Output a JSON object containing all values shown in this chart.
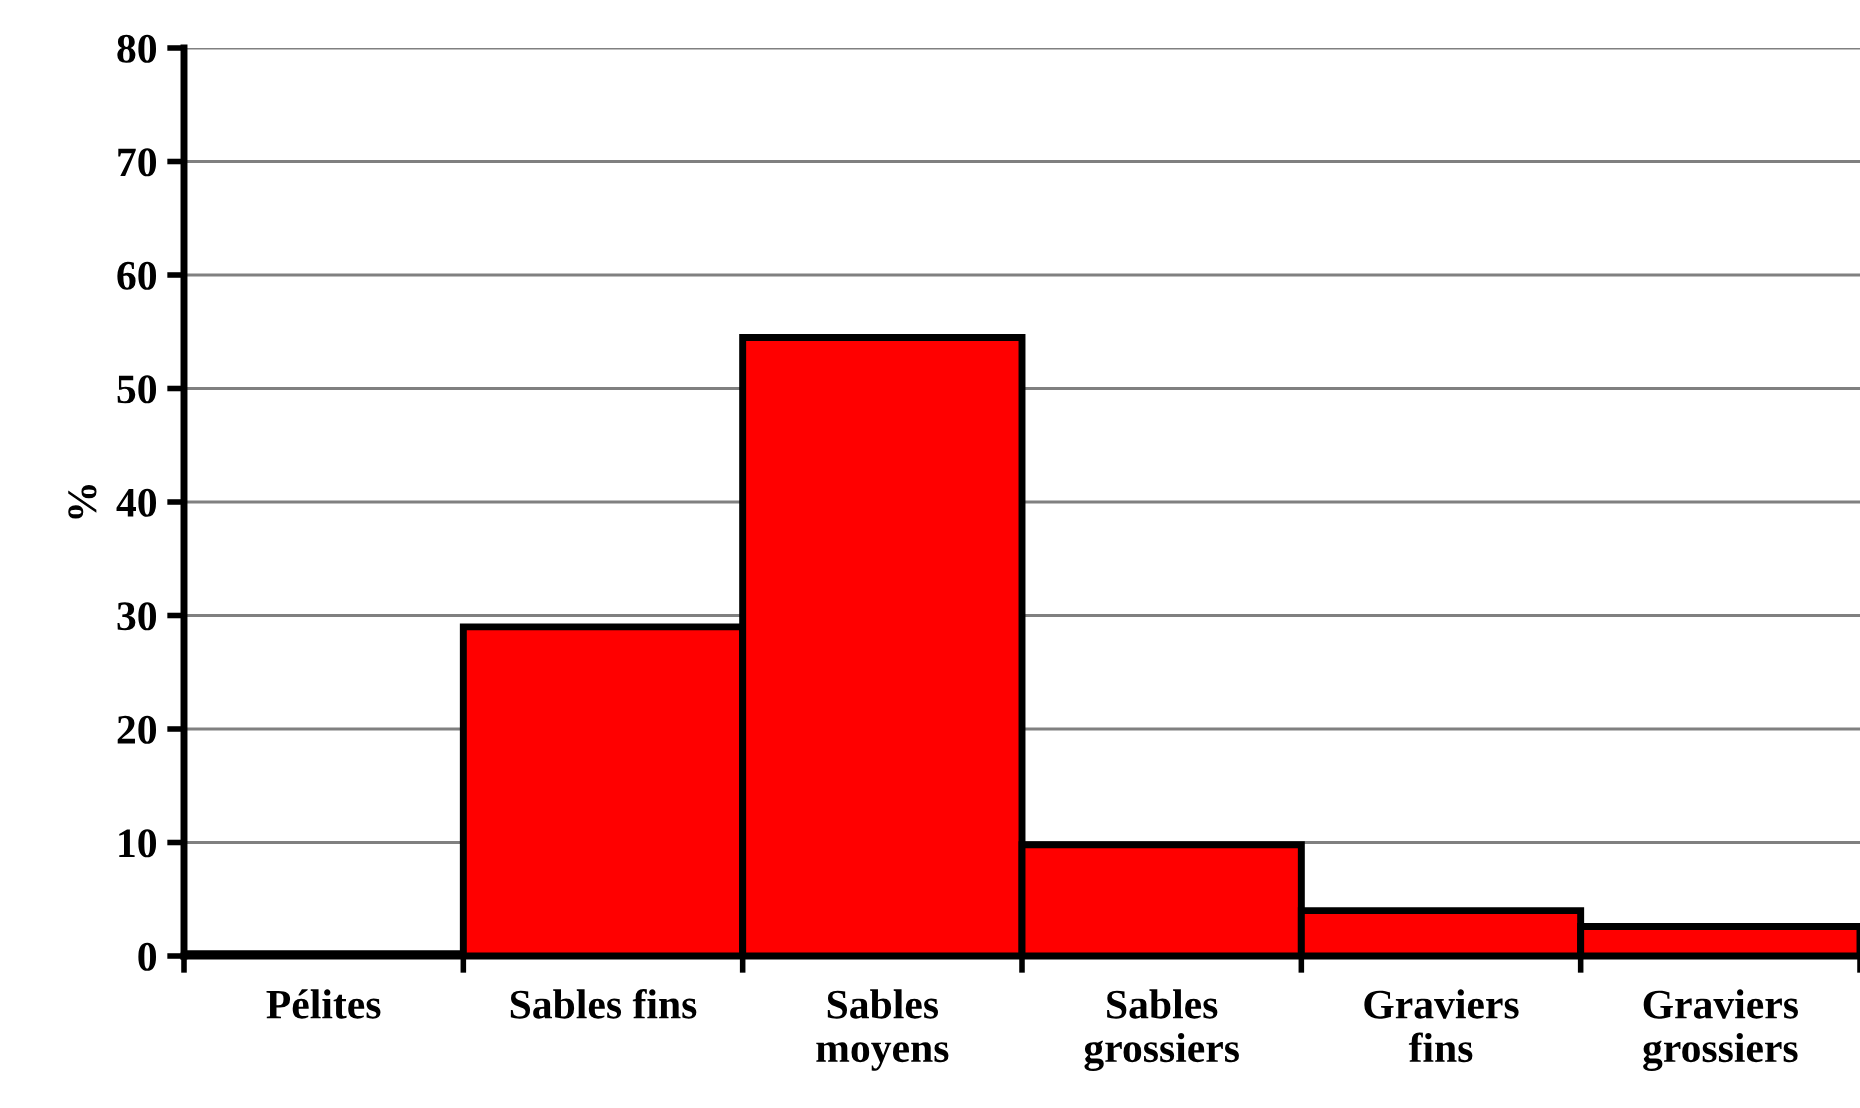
{
  "chart_data": {
    "type": "bar",
    "ylabel": "%",
    "categories": [
      "Pélites",
      "Sables fins",
      "Sables\nmoyens",
      "Sables\ngrossiers",
      "Graviers\nfins",
      "Graviers\ngrossiers"
    ],
    "values": [
      0.2,
      29,
      54.5,
      9.8,
      4,
      2.6
    ],
    "color": "#ff0000",
    "ylim": [
      0,
      80
    ],
    "yticks": [
      0,
      10,
      20,
      30,
      40,
      50,
      60,
      70,
      80
    ],
    "grid": "y",
    "legend": false
  }
}
